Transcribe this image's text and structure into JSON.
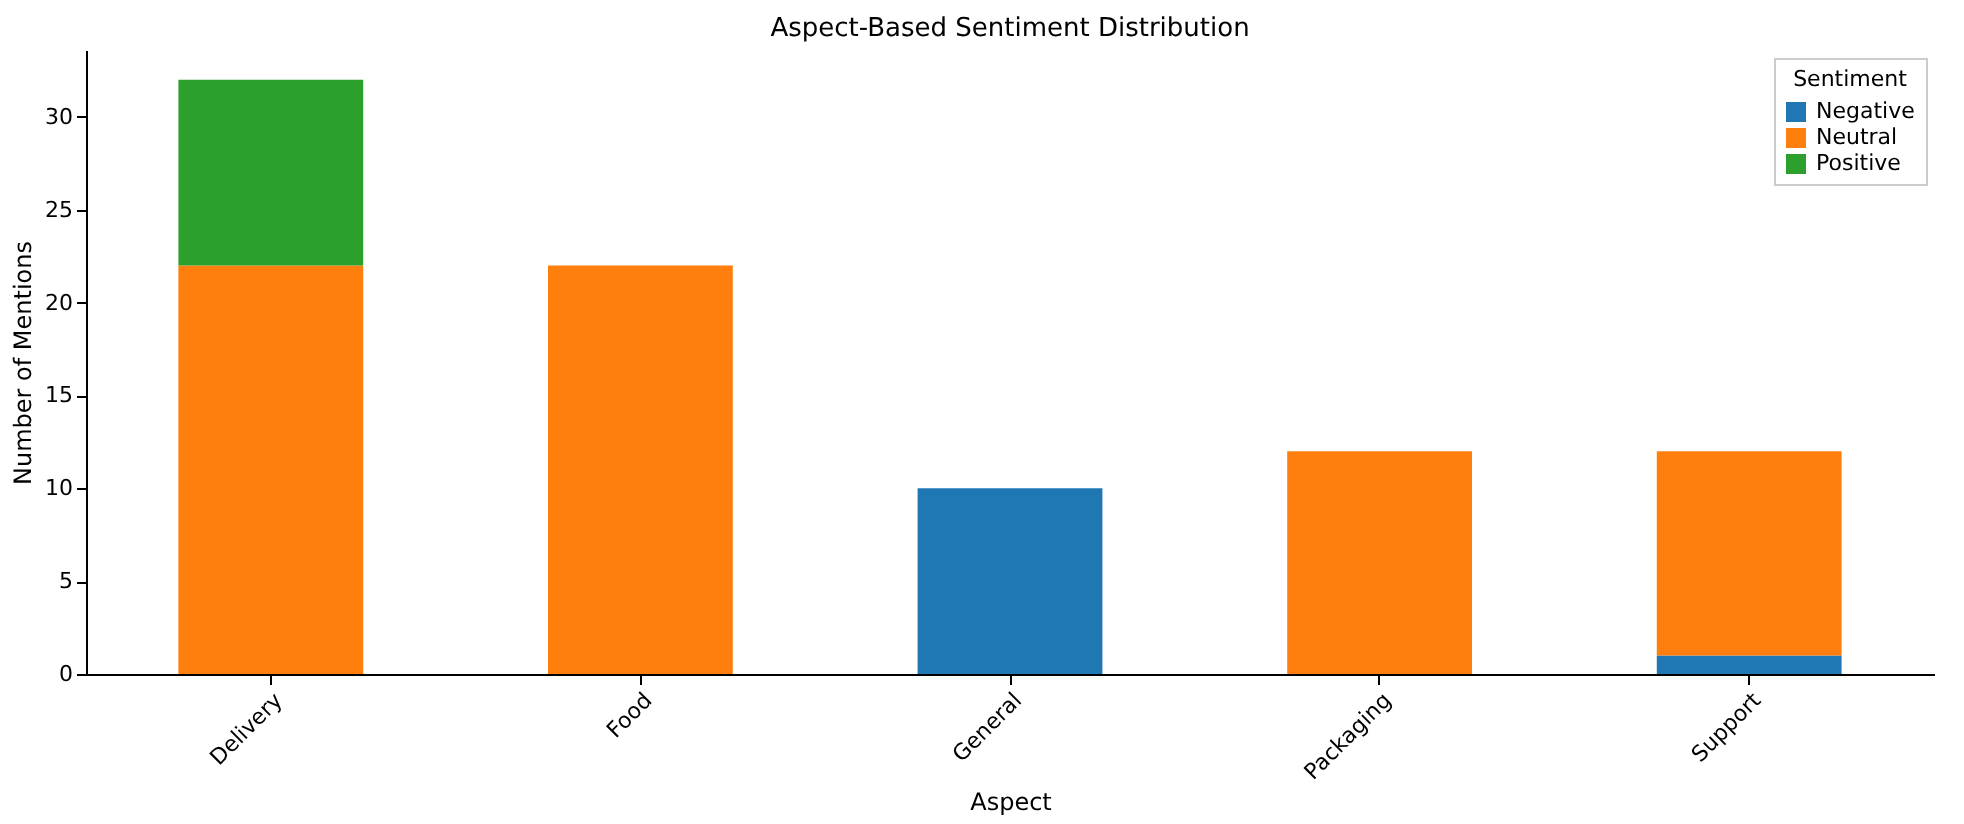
{
  "chart_data": {
    "type": "bar",
    "title": "Aspect-Based Sentiment Distribution",
    "xlabel": "Aspect",
    "ylabel": "Number of Mentions",
    "legend_title": "Sentiment",
    "categories": [
      "Delivery",
      "Food",
      "General",
      "Packaging",
      "Support"
    ],
    "series": [
      {
        "name": "Negative",
        "color": "#1f77b4",
        "values": [
          0,
          0,
          10,
          0,
          1
        ]
      },
      {
        "name": "Neutral",
        "color": "#ff7f0e",
        "values": [
          22,
          22,
          0,
          12,
          11
        ]
      },
      {
        "name": "Positive",
        "color": "#2ca02c",
        "values": [
          10,
          0,
          0,
          0,
          0
        ]
      }
    ],
    "stacked": true,
    "ylim": [
      0,
      33.6
    ],
    "yticks": [
      0,
      5,
      10,
      15,
      20,
      25,
      30
    ],
    "grid": false,
    "legend": "top right"
  }
}
